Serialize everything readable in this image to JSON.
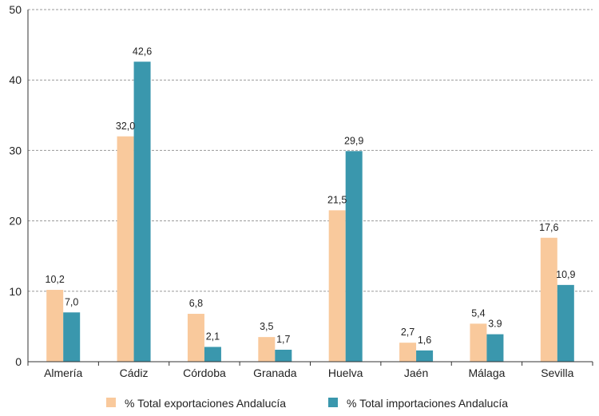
{
  "chart_data": {
    "type": "bar",
    "categories": [
      "Almería",
      "Cádiz",
      "Córdoba",
      "Granada",
      "Huelva",
      "Jaén",
      "Málaga",
      "Sevilla"
    ],
    "series": [
      {
        "name": "% Total exportaciones Andalucía",
        "color": "#f9c99c",
        "values": [
          10.2,
          32.0,
          6.8,
          3.5,
          21.5,
          2.7,
          5.4,
          17.6
        ],
        "labels": [
          "10,2",
          "32,0",
          "6,8",
          "3,5",
          "21,5",
          "2,7",
          "5,4",
          "17,6"
        ]
      },
      {
        "name": "% Total importaciones Andalucía",
        "color": "#3a97ad",
        "values": [
          7.0,
          42.6,
          2.1,
          1.7,
          29.9,
          1.6,
          3.9,
          10.9
        ],
        "labels": [
          "7,0",
          "42,6",
          "2,1",
          "1,7",
          "29,9",
          "1,6",
          "3.9",
          "10,9"
        ]
      }
    ],
    "ylim": [
      0,
      50
    ],
    "yticks": [
      0,
      10,
      20,
      30,
      40,
      50
    ],
    "grid": true,
    "legend": "bottom"
  }
}
